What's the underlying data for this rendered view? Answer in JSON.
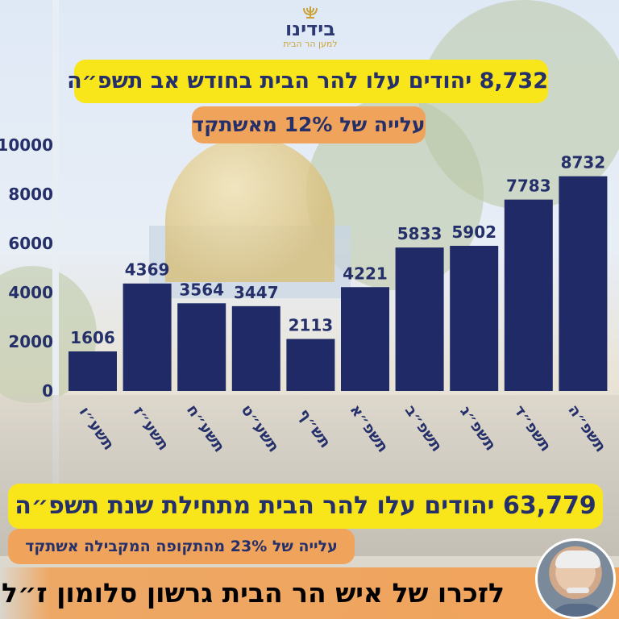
{
  "logo": {
    "name": "בידינו",
    "tagline": "למען הר הבית"
  },
  "headline": "8,732 יהודים עלו להר הבית בחודש אב תשפ״ה",
  "headline_sub": "עלייה של 12% מאשתקד",
  "summary": "63,779 יהודים עלו להר הבית מתחילת שנת תשפ״ה",
  "summary_sub": "עלייה של 23% מהתקופה המקבילה אשתקד",
  "dedication": "לזכרו של איש הר הבית גרשון סלומון ז״ל",
  "colors": {
    "bar": "#1f2a66",
    "yellow": "#f8e61a",
    "orange": "#f0a35a",
    "text": "#25306a"
  },
  "chart_data": {
    "type": "bar",
    "categories": [
      "תשע״ו",
      "תשע״ז",
      "תשע״ח",
      "תשע״ט",
      "תש״ף",
      "תשפ״א",
      "תשפ״ב",
      "תשפ״ג",
      "תשפ״ד",
      "תשפ״ה"
    ],
    "values": [
      1606,
      4369,
      3564,
      3447,
      2113,
      4221,
      5833,
      5902,
      7783,
      8732
    ],
    "value_labels": [
      "1606",
      "4369",
      "3564",
      "3447",
      "2113",
      "4221",
      "5833",
      "5902",
      "7783",
      "8732"
    ],
    "yticks": [
      "0",
      "2000",
      "4000",
      "6000",
      "8000",
      "10000"
    ],
    "ytick_values": [
      0,
      2000,
      4000,
      6000,
      8000,
      10000
    ],
    "ylim": [
      0,
      10000
    ],
    "grid": false,
    "legend": "none"
  }
}
